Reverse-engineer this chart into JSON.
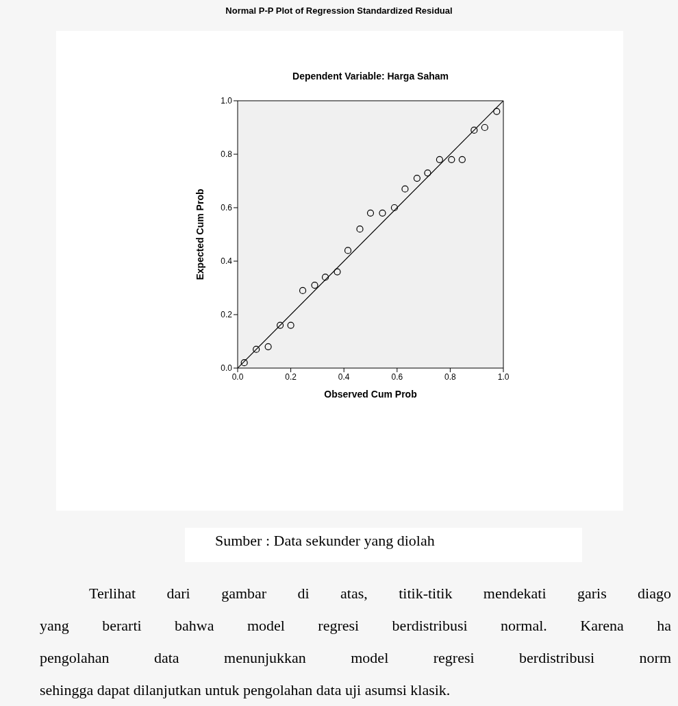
{
  "chart_data": {
    "type": "scatter",
    "title": "Normal P-P Plot of Regression Standardized Residual",
    "subtitle": "Dependent Variable: Harga Saham",
    "xlabel": "Observed Cum Prob",
    "ylabel": "Expected Cum Prob",
    "xlim": [
      0,
      1
    ],
    "ylim": [
      0,
      1
    ],
    "xticks": [
      {
        "value": 0,
        "label": "0.0"
      },
      {
        "value": 0.2,
        "label": "0.2"
      },
      {
        "value": 0.4,
        "label": "0.4"
      },
      {
        "value": 0.6,
        "label": "0.6"
      },
      {
        "value": 0.8,
        "label": "0.8"
      },
      {
        "value": 1,
        "label": "1.0"
      }
    ],
    "yticks": [
      {
        "value": 0,
        "label": "0.0"
      },
      {
        "value": 0.2,
        "label": "0.2"
      },
      {
        "value": 0.4,
        "label": "0.4"
      },
      {
        "value": 0.6,
        "label": "0.6"
      },
      {
        "value": 0.8,
        "label": "0.8"
      },
      {
        "value": 1,
        "label": "1.0"
      }
    ],
    "grid": false,
    "legend": false,
    "series": [
      {
        "type": "scatter",
        "marker": "circle",
        "color": "#000000",
        "x": [
          0.025,
          0.07,
          0.115,
          0.16,
          0.2,
          0.245,
          0.29,
          0.33,
          0.375,
          0.415,
          0.46,
          0.5,
          0.545,
          0.59,
          0.63,
          0.675,
          0.715,
          0.76,
          0.805,
          0.845,
          0.89,
          0.93,
          0.975
        ],
        "values": [
          0.02,
          0.07,
          0.08,
          0.16,
          0.16,
          0.29,
          0.31,
          0.34,
          0.36,
          0.44,
          0.52,
          0.58,
          0.58,
          0.6,
          0.67,
          0.71,
          0.73,
          0.78,
          0.78,
          0.78,
          0.89,
          0.9,
          0.96
        ]
      },
      {
        "type": "line",
        "marker": "none",
        "color": "#000000",
        "x": [
          0,
          1
        ],
        "values": [
          0,
          1
        ]
      }
    ],
    "annotations": [
      "Sumber : Data sekunder yang diolah",
      "Terlihat dari gambar di atas, titik-titik mendekati garis diago",
      "yang berarti bahwa model regresi berdistribusi normal. Karena ha",
      "pengolahan data menunjukkan model regresi berdistribusi norm",
      "sehingga dapat dilanjutkan untuk pengolahan data uji asumsi klasik."
    ]
  }
}
